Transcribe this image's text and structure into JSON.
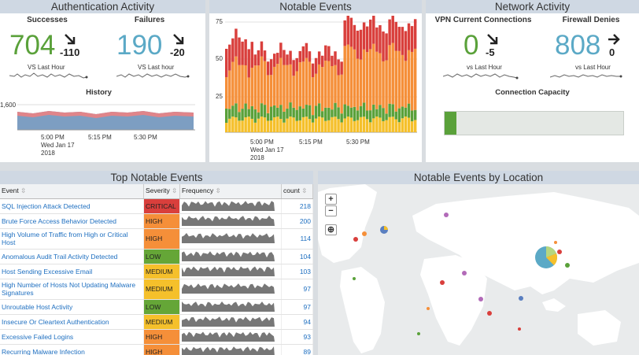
{
  "auth": {
    "title": "Authentication Activity",
    "successes": {
      "label": "Successes",
      "value": "704",
      "delta": "-110",
      "caption": "VS Last Hour"
    },
    "failures": {
      "label": "Failures",
      "value": "190",
      "delta": "-20",
      "caption": "VS Last hour"
    },
    "history": {
      "title": "History",
      "ytick": "1,600",
      "xticks": [
        "5:00 PM\nWed Jan 17\n2018",
        "5:15 PM",
        "5:30 PM"
      ]
    }
  },
  "notable": {
    "title": "Notable Events",
    "yticks": [
      "75",
      "50",
      "25"
    ],
    "xticks": [
      "5:00 PM\nWed Jan 17\n2018",
      "5:15 PM",
      "5:30 PM"
    ]
  },
  "network": {
    "title": "Network Activity",
    "vpn": {
      "label": "VPN Current Connections",
      "value": "0",
      "delta": "-5",
      "caption": "vs Last Hour"
    },
    "firewall": {
      "label": "Firewall Denies",
      "value": "808",
      "delta": "0",
      "caption": "vs Last Hour"
    },
    "capacity": {
      "label": "Connection Capacity"
    }
  },
  "top_events": {
    "title": "Top Notable Events",
    "headers": {
      "event": "Event",
      "severity": "Severity",
      "frequency": "Frequency",
      "count": "count"
    },
    "rows": [
      {
        "event": "SQL Injection Attack Detected",
        "severity": "CRITICAL",
        "count": "218"
      },
      {
        "event": "Brute Force Access Behavior Detected",
        "severity": "HIGH",
        "count": "200"
      },
      {
        "event": "High Volume of Traffic from High or Critical Host",
        "severity": "HIGH",
        "count": "114"
      },
      {
        "event": "Anomalous Audit Trail Activity Detected",
        "severity": "LOW",
        "count": "104"
      },
      {
        "event": "Host Sending Excessive Email",
        "severity": "MEDIUM",
        "count": "103"
      },
      {
        "event": "High Number of Hosts Not Updating Malware Signatures",
        "severity": "MEDIUM",
        "count": "97"
      },
      {
        "event": "Unroutable Host Activity",
        "severity": "LOW",
        "count": "97"
      },
      {
        "event": "Insecure Or Cleartext Authentication",
        "severity": "MEDIUM",
        "count": "94"
      },
      {
        "event": "Excessive Failed Logins",
        "severity": "HIGH",
        "count": "93"
      },
      {
        "event": "Recurring Malware Infection",
        "severity": "HIGH",
        "count": "89"
      }
    ]
  },
  "map": {
    "title": "Notable Events by Location",
    "zoom_in": "+",
    "zoom_out": "−",
    "locate": "⊕"
  },
  "colors": {
    "green": "#5aa13a",
    "blue": "#5ba9c6",
    "critical": "#d93f3c",
    "high": "#f58f39",
    "medium": "#f5c02b",
    "low": "#65a637"
  }
}
